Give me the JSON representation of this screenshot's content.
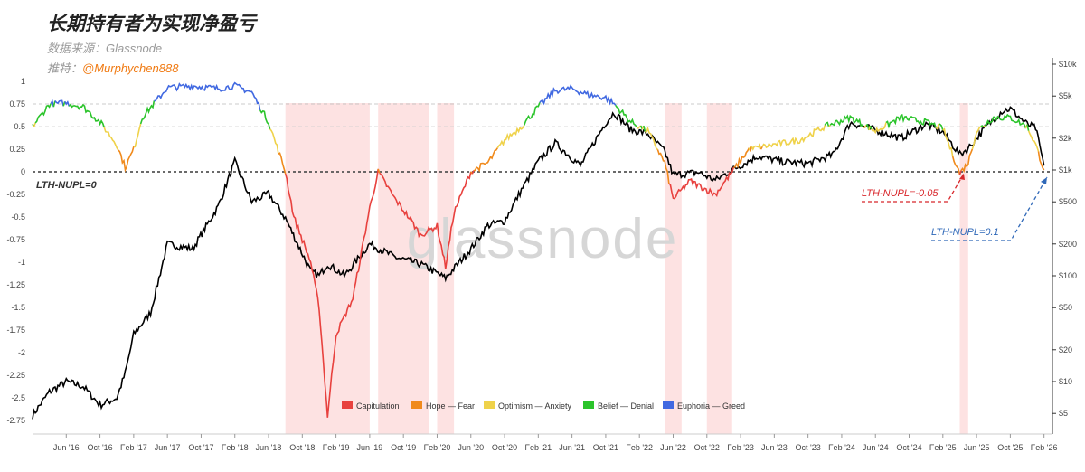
{
  "header": {
    "title": "长期持有者为实现净盈亏",
    "source_label": "数据来源：",
    "source_value": "Glassnode",
    "rec_label": "推特：",
    "rec_value": "@Murphychen888"
  },
  "watermark": "glassnode",
  "colors": {
    "capitulation": "#e8413e",
    "hope_fear": "#f08a1c",
    "optimism_anxiety": "#efd24a",
    "belief_denial": "#2bc42b",
    "euphoria_greed": "#4169e1",
    "price": "#000000",
    "shade": "#fde2e2",
    "red_annotation": "#d8262b",
    "blue_annotation": "#2f68b8"
  },
  "annotations": {
    "zero_line": "LTH-NUPL=0",
    "recent_low": "LTH-NUPL=-0.05",
    "target": "LTH-NUPL=0.1"
  },
  "chart_data": {
    "type": "line",
    "title": "长期持有者为实现净盈亏",
    "x_ticks": [
      "Jun '16",
      "Oct '16",
      "Feb '17",
      "Jun '17",
      "Oct '17",
      "Feb '18",
      "Jun '18",
      "Oct '18",
      "Feb '19",
      "Jun '19",
      "Oct '19",
      "Feb '20",
      "Jun '20",
      "Oct '20",
      "Feb '21",
      "Jun '21",
      "Oct '21",
      "Feb '22",
      "Jun '22",
      "Oct '22",
      "Feb '23",
      "Jun '23",
      "Oct '23",
      "Feb '24",
      "Jun '24",
      "Oct '24",
      "Feb '25",
      "Jun '25",
      "Oct '25",
      "Feb '26"
    ],
    "x_range": [
      "2016-02",
      "2026-03"
    ],
    "y_left": {
      "ticks": [
        "1",
        "0.75",
        "0.5",
        "0.25",
        "0",
        "-0.25",
        "-0.5",
        "-0.75",
        "-1",
        "-1.25",
        "-1.5",
        "-1.75",
        "-2",
        "-2.25",
        "-2.5",
        "-2.75"
      ],
      "ylim": [
        -2.85,
        1.05
      ]
    },
    "y_right": {
      "ticks": [
        "$10k",
        "$5k",
        "$2k",
        "$1k",
        "$500",
        "$200",
        "$100",
        "$50",
        "$20",
        "$10",
        "$5"
      ],
      "scale": "log"
    },
    "legend": [
      "Capitulation",
      "Hope — Fear",
      "Optimism — Anxiety",
      "Belief — Denial",
      "Euphoria — Greed"
    ],
    "legend_placement": "bottom-center",
    "shaded_periods": [
      [
        "2018-08",
        "2019-06"
      ],
      [
        "2019-07",
        "2020-01"
      ],
      [
        "2020-02",
        "2020-04"
      ],
      [
        "2022-05",
        "2022-07"
      ],
      [
        "2022-10",
        "2023-01"
      ],
      [
        "2025-04",
        "2025-05"
      ]
    ],
    "series": [
      {
        "name": "LTH-NUPL",
        "x": [
          "2016-02",
          "2016-04",
          "2016-06",
          "2016-08",
          "2016-10",
          "2016-12",
          "2017-01",
          "2017-02",
          "2017-03",
          "2017-06",
          "2017-09",
          "2017-12",
          "2018-02",
          "2018-04",
          "2018-06",
          "2018-08",
          "2018-09",
          "2018-11",
          "2018-12",
          "2019-01",
          "2019-02",
          "2019-04",
          "2019-06",
          "2019-07",
          "2019-09",
          "2019-11",
          "2019-12",
          "2020-02",
          "2020-03",
          "2020-04",
          "2020-06",
          "2020-08",
          "2020-10",
          "2020-12",
          "2021-02",
          "2021-04",
          "2021-06",
          "2021-08",
          "2021-10",
          "2021-11",
          "2022-01",
          "2022-03",
          "2022-05",
          "2022-06",
          "2022-08",
          "2022-11",
          "2023-01",
          "2023-03",
          "2023-06",
          "2023-09",
          "2023-12",
          "2024-03",
          "2024-06",
          "2024-09",
          "2024-12",
          "2025-02",
          "2025-04",
          "2025-05",
          "2025-06",
          "2025-08",
          "2025-10",
          "2025-12",
          "2026-01",
          "2026-02"
        ],
        "values": [
          0.5,
          0.75,
          0.76,
          0.72,
          0.55,
          0.3,
          0.05,
          0.25,
          0.6,
          0.93,
          0.95,
          0.92,
          0.95,
          0.88,
          0.55,
          0.0,
          -0.5,
          -1.0,
          -1.5,
          -2.7,
          -1.8,
          -1.4,
          -0.4,
          0.0,
          -0.3,
          -0.55,
          -0.7,
          -0.6,
          -1.05,
          -0.45,
          0.0,
          0.1,
          0.35,
          0.5,
          0.72,
          0.9,
          0.92,
          0.85,
          0.82,
          0.75,
          0.55,
          0.45,
          0.1,
          -0.3,
          -0.1,
          -0.25,
          0.0,
          0.25,
          0.3,
          0.35,
          0.5,
          0.6,
          0.45,
          0.6,
          0.55,
          0.48,
          -0.02,
          0.1,
          0.45,
          0.6,
          0.6,
          0.5,
          0.3,
          0.02
        ]
      },
      {
        "name": "Price",
        "x": [
          "2016-02",
          "2016-04",
          "2016-06",
          "2016-08",
          "2016-10",
          "2016-12",
          "2017-01",
          "2017-02",
          "2017-04",
          "2017-06",
          "2017-09",
          "2017-12",
          "2018-02",
          "2018-04",
          "2018-06",
          "2018-08",
          "2018-11",
          "2018-12",
          "2019-01",
          "2019-03",
          "2019-06",
          "2019-09",
          "2019-12",
          "2020-03",
          "2020-06",
          "2020-08",
          "2020-10",
          "2020-12",
          "2021-02",
          "2021-04",
          "2021-07",
          "2021-10",
          "2021-11",
          "2022-01",
          "2022-03",
          "2022-05",
          "2022-06",
          "2022-09",
          "2022-11",
          "2023-01",
          "2023-04",
          "2023-07",
          "2023-10",
          "2024-01",
          "2024-03",
          "2024-06",
          "2024-09",
          "2024-12",
          "2025-02",
          "2025-04",
          "2025-05",
          "2025-07",
          "2025-09",
          "2025-10",
          "2025-12",
          "2026-01",
          "2026-02"
        ],
        "values": [
          4.8,
          8,
          10,
          9,
          6,
          7,
          12,
          28,
          45,
          200,
          180,
          450,
          1200,
          500,
          600,
          350,
          110,
          100,
          130,
          100,
          200,
          150,
          130,
          95,
          180,
          300,
          330,
          650,
          1200,
          1800,
          1100,
          2800,
          3500,
          2400,
          2200,
          1500,
          900,
          950,
          800,
          1000,
          1350,
          1200,
          1150,
          1400,
          2800,
          2400,
          2000,
          2700,
          2300,
          1400,
          1600,
          2500,
          3600,
          3800,
          2700,
          2500,
          1100
        ]
      }
    ]
  }
}
